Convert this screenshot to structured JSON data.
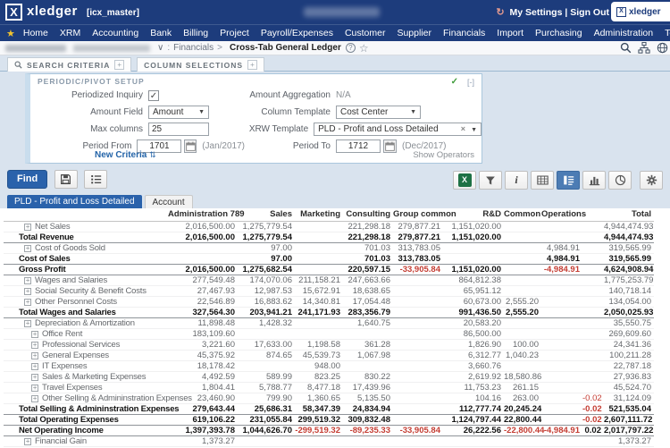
{
  "header": {
    "logo": "xledger",
    "environment": "[icx_master]",
    "my_settings": "My Settings",
    "divider": "|",
    "sign_out": "Sign Out",
    "badge_logo": "xledger"
  },
  "menu": {
    "items": [
      "Home",
      "XRM",
      "Accounting",
      "Bank",
      "Billing",
      "Project",
      "Payroll/Expenses",
      "Customer",
      "Supplier",
      "Financials",
      "Import",
      "Purchasing",
      "Administration",
      "Tools"
    ]
  },
  "breadcrumb": {
    "chevron": "∨",
    "colon": ":",
    "parent": "Financials",
    "arrow": ">",
    "current": "Cross-Tab General Ledger",
    "help": "?"
  },
  "criteria_bar": {
    "search_criteria": "SEARCH CRITERIA",
    "column_selections": "COLUMN SELECTIONS",
    "expand_symbol": "+"
  },
  "panel": {
    "title": "PERIODIC/PIVOT SETUP",
    "check": "✓",
    "collapse": "[-]",
    "periodized_label": "Periodized Inquiry",
    "periodized_check": "✓",
    "amount_field_label": "Amount Field",
    "amount_field_value": "Amount",
    "max_columns_label": "Max columns",
    "max_columns_value": "25",
    "period_from_label": "Period From",
    "period_from_value": "1701",
    "period_from_hint": "(Jan/2017)",
    "new_criteria": "New Criteria",
    "amount_aggregation_label": "Amount Aggregation",
    "amount_aggregation_value": "N/A",
    "column_template_label": "Column Template",
    "column_template_value": "Cost Center",
    "xrw_template_label": "XRW Template",
    "xrw_template_value": "PLD - Profit and Loss Detailed",
    "xrw_clear": "×",
    "period_to_label": "Period To",
    "period_to_value": "1712",
    "period_to_hint": "(Dec/2017)",
    "show_operators": "Show Operators"
  },
  "toolbar": {
    "find_label": "Find",
    "excel_label": "X"
  },
  "tabs": {
    "active": "PLD - Profit and Loss Detailed",
    "secondary": "Account"
  },
  "table": {
    "columns": [
      "",
      "Administration 789",
      "Sales",
      "Marketing",
      "Consulting",
      "Group common",
      "R&D",
      "Common",
      "Operations",
      "",
      "Total"
    ],
    "rows": [
      {
        "label": "Net Sales",
        "type": "leaf1",
        "values": [
          "2,016,500.00",
          "1,275,779.54",
          "",
          "221,298.18",
          "279,877.21",
          "1,151,020.00",
          "",
          "",
          "",
          "4,944,474.93"
        ]
      },
      {
        "label": "Total Revenue",
        "type": "total",
        "values": [
          "2,016,500.00",
          "1,275,779.54",
          "",
          "221,298.18",
          "279,877.21",
          "1,151,020.00",
          "",
          "",
          "",
          "4,944,474.93"
        ]
      },
      {
        "label": "Cost of Goods Sold",
        "type": "leaf1",
        "values": [
          "",
          "97.00",
          "",
          "701.03",
          "313,783.05",
          "",
          "",
          "4,984.91",
          "",
          "319,565.99"
        ]
      },
      {
        "label": "Cost of Sales",
        "type": "total",
        "values": [
          "",
          "97.00",
          "",
          "701.03",
          "313,783.05",
          "",
          "",
          "4,984.91",
          "",
          "319,565.99"
        ]
      },
      {
        "label": "Gross Profit",
        "type": "total",
        "values": [
          "2,016,500.00",
          "1,275,682.54",
          "",
          "220,597.15",
          "-33,905.84",
          "1,151,020.00",
          "",
          "-4,984.91",
          "",
          "4,624,908.94"
        ]
      },
      {
        "label": "Wages and Salaries",
        "type": "leaf1",
        "values": [
          "277,549.48",
          "174,070.06",
          "211,158.21",
          "247,663.66",
          "",
          "864,812.38",
          "",
          "",
          "",
          "1,775,253.79"
        ]
      },
      {
        "label": "Social Security & Benefit Costs",
        "type": "leaf1",
        "values": [
          "27,467.93",
          "12,987.53",
          "15,672.91",
          "18,638.65",
          "",
          "65,951.12",
          "",
          "",
          "",
          "140,718.14"
        ]
      },
      {
        "label": "Other Personnel Costs",
        "type": "leaf1",
        "values": [
          "22,546.89",
          "16,883.62",
          "14,340.81",
          "17,054.48",
          "",
          "60,673.00",
          "2,555.20",
          "",
          "",
          "134,054.00"
        ]
      },
      {
        "label": "Total Wages and Salaries",
        "type": "total",
        "values": [
          "327,564.30",
          "203,941.21",
          "241,171.93",
          "283,356.79",
          "",
          "991,436.50",
          "2,555.20",
          "",
          "",
          "2,050,025.93"
        ]
      },
      {
        "label": "Depreciation & Amortization",
        "type": "leaf1",
        "values": [
          "11,898.48",
          "1,428.32",
          "",
          "1,640.75",
          "",
          "20,583.20",
          "",
          "",
          "",
          "35,550.75"
        ]
      },
      {
        "label": "Office Rent",
        "type": "leaf2",
        "values": [
          "183,109.60",
          "",
          "",
          "",
          "",
          "86,500.00",
          "",
          "",
          "",
          "269,609.60"
        ]
      },
      {
        "label": "Professional Services",
        "type": "leaf2",
        "values": [
          "3,221.60",
          "17,633.00",
          "1,198.58",
          "361.28",
          "",
          "1,826.90",
          "100.00",
          "",
          "",
          "24,341.36"
        ]
      },
      {
        "label": "General Expenses",
        "type": "leaf2",
        "values": [
          "45,375.92",
          "874.65",
          "45,539.73",
          "1,067.98",
          "",
          "6,312.77",
          "1,040.23",
          "",
          "",
          "100,211.28"
        ]
      },
      {
        "label": "IT Expenses",
        "type": "leaf2",
        "values": [
          "18,178.42",
          "",
          "948.00",
          "",
          "",
          "3,660.76",
          "",
          "",
          "",
          "22,787.18"
        ]
      },
      {
        "label": "Sales & Marketing Expenses",
        "type": "leaf2",
        "values": [
          "4,492.59",
          "589.99",
          "823.25",
          "830.22",
          "",
          "2,619.92",
          "18,580.86",
          "",
          "",
          "27,936.83"
        ]
      },
      {
        "label": "Travel Expenses",
        "type": "leaf2",
        "values": [
          "1,804.41",
          "5,788.77",
          "8,477.18",
          "17,439.96",
          "",
          "11,753.23",
          "261.15",
          "",
          "",
          "45,524.70"
        ]
      },
      {
        "label": "Other Selling & Admininstration Expenses",
        "type": "leaf2",
        "values": [
          "23,460.90",
          "799.90",
          "1,360.65",
          "5,135.50",
          "",
          "104.16",
          "263.00",
          "",
          "-0.02",
          "31,124.09"
        ]
      },
      {
        "label": "Total Selling & Admininstration Expenses",
        "type": "total",
        "values": [
          "279,643.44",
          "25,686.31",
          "58,347.39",
          "24,834.94",
          "",
          "112,777.74",
          "20,245.24",
          "",
          "-0.02",
          "521,535.04"
        ]
      },
      {
        "label": "Total Operating Expenses",
        "type": "total",
        "values": [
          "619,106.22",
          "231,055.84",
          "299,519.32",
          "309,832.48",
          "",
          "1,124,797.44",
          "22,800.44",
          "",
          "-0.02",
          "2,607,111.72"
        ]
      },
      {
        "label": "Net Operating Income",
        "type": "total",
        "values": [
          "1,397,393.78",
          "1,044,626.70",
          "-299,519.32",
          "-89,235.33",
          "-33,905.84",
          "26,222.56",
          "-22,800.44",
          "-4,984.91",
          "0.02",
          "2,017,797.22"
        ]
      },
      {
        "label": "Financial Gain",
        "type": "leaf1",
        "values": [
          "1,373.27",
          "",
          "",
          "",
          "",
          "",
          "",
          "",
          "",
          "1,373.27"
        ]
      }
    ]
  },
  "colors": {
    "navy": "#1d3c7c",
    "accent_blue": "#2a62ab",
    "negative_red": "#c43d33",
    "excel_green": "#1e7145",
    "check_green": "#3f9c3b"
  }
}
